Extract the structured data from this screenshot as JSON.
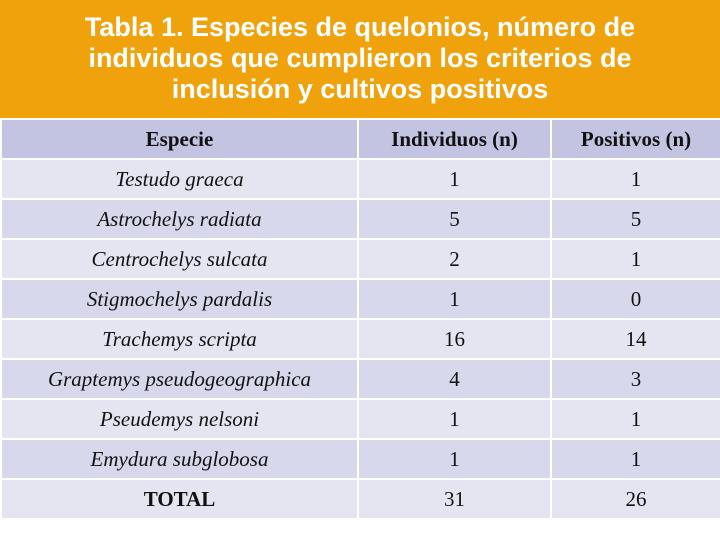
{
  "header": {
    "title": "Tabla 1. Especies de quelonios, número de individuos que cumplieron los criterios de inclusión y cultivos positivos"
  },
  "table": {
    "columns": [
      "Especie",
      "Individuos (n)",
      "Positivos (n)"
    ],
    "rows": [
      [
        "Testudo graeca",
        1,
        1
      ],
      [
        "Astrochelys radiata",
        5,
        5
      ],
      [
        "Centrochelys sulcata",
        2,
        1
      ],
      [
        "Stigmochelys pardalis",
        1,
        0
      ],
      [
        "Trachemys scripta",
        16,
        14
      ],
      [
        "Graptemys pseudogeographica",
        4,
        3
      ],
      [
        "Pseudemys nelsoni",
        1,
        1
      ],
      [
        "Emydura subglobosa",
        1,
        1
      ]
    ],
    "total": [
      "TOTAL",
      31,
      26
    ]
  }
}
